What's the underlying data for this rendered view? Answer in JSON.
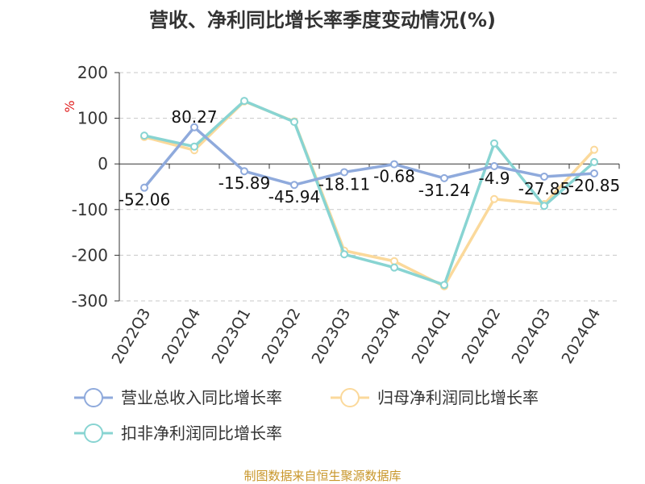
{
  "chart_data": {
    "type": "line",
    "title": "营收、净利同比增长率季度变动情况(%)",
    "ylabel": "%",
    "ylim": [
      -300,
      200
    ],
    "yticks": [
      200,
      100,
      0,
      -100,
      -200,
      -300
    ],
    "grid": true,
    "legend_position": "bottom",
    "categories": [
      "2022Q3",
      "2022Q4",
      "2023Q1",
      "2023Q2",
      "2023Q3",
      "2023Q4",
      "2024Q1",
      "2024Q2",
      "2024Q3",
      "2024Q4"
    ],
    "series": [
      {
        "name": "营业总收入同比增长率",
        "color": "#8faadc",
        "values": [
          -52.06,
          80.27,
          -15.89,
          -45.94,
          -18.11,
          -0.68,
          -31.24,
          -4.9,
          -27.85,
          -20.85
        ],
        "labels": [
          "-52.06",
          "80.27",
          "-15.89",
          "-45.94",
          "-18.11",
          "-0.68",
          "-31.24",
          "-4.9",
          "-27.85",
          "-20.85"
        ]
      },
      {
        "name": "归母净利润同比增长率",
        "color": "#fbd99b",
        "values": [
          59,
          30,
          137,
          93,
          -190,
          -213,
          -268,
          -77,
          -88,
          31
        ]
      },
      {
        "name": "扣非净利润同比增长率",
        "color": "#88d4d2",
        "values": [
          62,
          38,
          138,
          92,
          -198,
          -227,
          -265,
          45,
          -92,
          4
        ]
      }
    ]
  },
  "source": "制图数据来自恒生聚源数据库"
}
